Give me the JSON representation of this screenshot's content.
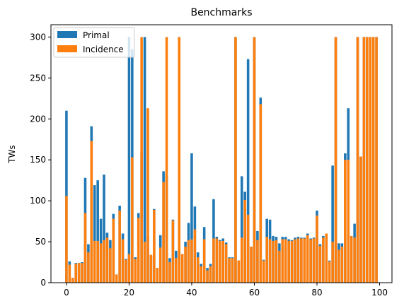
{
  "chart_data": {
    "type": "bar",
    "title": "Benchmarks",
    "xlabel": "",
    "ylabel": "TWs",
    "xlim": [
      -4.95,
      103.95
    ],
    "ylim": [
      0,
      315
    ],
    "xticks": [
      0,
      20,
      40,
      60,
      80,
      100
    ],
    "yticks": [
      0,
      50,
      100,
      150,
      200,
      250,
      300
    ],
    "grid": false,
    "legend_position": "top-left",
    "x": [
      0,
      1,
      2,
      3,
      4,
      5,
      6,
      7,
      8,
      9,
      10,
      11,
      12,
      13,
      14,
      15,
      16,
      17,
      18,
      19,
      20,
      21,
      22,
      23,
      24,
      25,
      26,
      27,
      28,
      29,
      30,
      31,
      32,
      33,
      34,
      35,
      36,
      37,
      38,
      39,
      40,
      41,
      42,
      43,
      44,
      45,
      46,
      47,
      48,
      49,
      50,
      51,
      52,
      53,
      54,
      55,
      56,
      57,
      58,
      59,
      60,
      61,
      62,
      63,
      64,
      65,
      66,
      67,
      68,
      69,
      70,
      71,
      72,
      73,
      74,
      75,
      76,
      77,
      78,
      79,
      80,
      81,
      82,
      83,
      84,
      85,
      86,
      87,
      88,
      89,
      90,
      91,
      92,
      93,
      94,
      95,
      96,
      97,
      98,
      99
    ],
    "series": [
      {
        "name": "Primal",
        "color": "#1f77b4",
        "values": [
          210,
          26,
          6,
          24,
          24,
          25,
          128,
          47,
          191,
          119,
          125,
          78,
          132,
          61,
          52,
          84,
          10,
          94,
          60,
          29,
          300,
          285,
          31,
          85,
          159,
          300,
          57,
          32,
          90,
          18,
          58,
          136,
          130,
          30,
          77,
          39,
          300,
          35,
          50,
          73,
          158,
          93,
          37,
          23,
          68,
          18,
          23,
          102,
          56,
          52,
          54,
          49,
          31,
          31,
          300,
          27,
          130,
          111,
          273,
          44,
          300,
          63,
          226,
          28,
          78,
          77,
          57,
          56,
          48,
          56,
          56,
          53,
          52,
          55,
          56,
          55,
          55,
          60,
          54,
          55,
          88,
          47,
          57,
          60,
          27,
          143,
          300,
          48,
          48,
          158,
          213,
          57,
          72,
          300,
          154,
          300,
          300,
          300,
          300,
          300
        ]
      },
      {
        "name": "Incidence",
        "color": "#ff7f0e",
        "values": [
          106,
          22,
          6,
          23,
          24,
          24,
          85,
          37,
          173,
          51,
          51,
          48,
          52,
          55,
          42,
          78,
          10,
          88,
          53,
          28,
          35,
          153,
          29,
          79,
          300,
          50,
          213,
          34,
          89,
          18,
          43,
          123,
          300,
          25,
          76,
          30,
          300,
          35,
          44,
          52,
          53,
          65,
          31,
          20,
          53,
          15,
          20,
          54,
          54,
          51,
          51,
          47,
          30,
          30,
          300,
          27,
          55,
          101,
          83,
          44,
          300,
          52,
          218,
          27,
          56,
          53,
          51,
          52,
          39,
          53,
          53,
          51,
          51,
          53,
          54,
          54,
          54,
          58,
          53,
          54,
          82,
          45,
          55,
          60,
          26,
          50,
          300,
          40,
          44,
          150,
          150,
          57,
          55,
          300,
          154,
          300,
          300,
          300,
          300,
          300
        ]
      }
    ]
  }
}
